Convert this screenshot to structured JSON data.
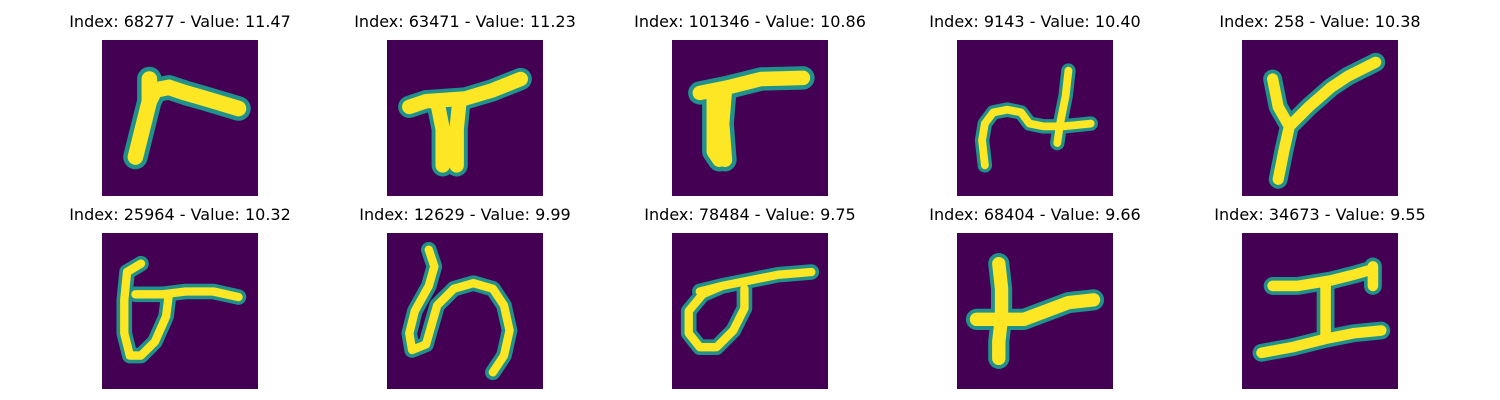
{
  "colors": {
    "background": "#440154",
    "stroke_edge": "#21918c",
    "stroke_core": "#fde725"
  },
  "items": [
    {
      "index": "68277",
      "value": "11.47",
      "title": "Index: 68277 - Value: 11.47",
      "glyph": "glyph-1"
    },
    {
      "index": "63471",
      "value": "11.23",
      "title": "Index: 63471 - Value: 11.23",
      "glyph": "glyph-2"
    },
    {
      "index": "101346",
      "value": "10.86",
      "title": "Index: 101346 - Value: 10.86",
      "glyph": "glyph-3"
    },
    {
      "index": "9143",
      "value": "10.40",
      "title": "Index: 9143 - Value: 10.40",
      "glyph": "glyph-4"
    },
    {
      "index": "258",
      "value": "10.38",
      "title": "Index: 258 - Value: 10.38",
      "glyph": "glyph-5"
    },
    {
      "index": "25964",
      "value": "10.32",
      "title": "Index: 25964 - Value: 10.32",
      "glyph": "glyph-6"
    },
    {
      "index": "12629",
      "value": "9.99",
      "title": "Index: 12629 - Value: 9.99",
      "glyph": "glyph-7"
    },
    {
      "index": "78484",
      "value": "9.75",
      "title": "Index: 78484 - Value: 9.75",
      "glyph": "glyph-8"
    },
    {
      "index": "68404",
      "value": "9.66",
      "title": "Index: 68404 - Value: 9.66",
      "glyph": "glyph-9"
    },
    {
      "index": "34673",
      "value": "9.55",
      "title": "Index: 34673 - Value: 9.55",
      "glyph": "glyph-10"
    }
  ]
}
